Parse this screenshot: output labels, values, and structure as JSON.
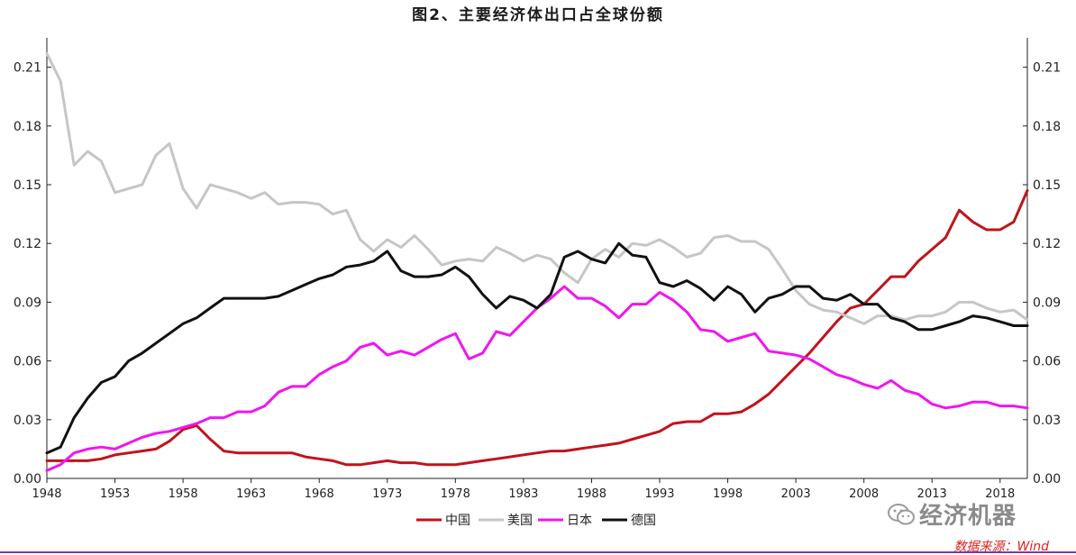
{
  "title": "图2、主要经济体出口占全球份额",
  "source": "数据来源：Wind",
  "watermark": "经济机器",
  "chart_data": {
    "type": "line",
    "xlim": [
      1948,
      2020
    ],
    "ylim": [
      0,
      0.225
    ],
    "x_ticks": [
      1948,
      1953,
      1958,
      1963,
      1968,
      1973,
      1978,
      1983,
      1988,
      1993,
      1998,
      2003,
      2008,
      2013,
      2018
    ],
    "y_ticks": [
      0.0,
      0.03,
      0.06,
      0.09,
      0.12,
      0.15,
      0.18,
      0.21
    ],
    "y_tick_labels": [
      "0.00",
      "0.03",
      "0.06",
      "0.09",
      "0.12",
      "0.15",
      "0.18",
      "0.21"
    ],
    "legend_position": "bottom-center",
    "grid": false,
    "series": [
      {
        "name": "中国",
        "color": "#c0141c",
        "points": [
          [
            1948,
            0.009
          ],
          [
            1949,
            0.009
          ],
          [
            1950,
            0.009
          ],
          [
            1951,
            0.009
          ],
          [
            1952,
            0.01
          ],
          [
            1953,
            0.012
          ],
          [
            1954,
            0.013
          ],
          [
            1955,
            0.014
          ],
          [
            1956,
            0.015
          ],
          [
            1957,
            0.019
          ],
          [
            1958,
            0.025
          ],
          [
            1959,
            0.027
          ],
          [
            1960,
            0.02
          ],
          [
            1961,
            0.014
          ],
          [
            1962,
            0.013
          ],
          [
            1963,
            0.013
          ],
          [
            1964,
            0.013
          ],
          [
            1965,
            0.013
          ],
          [
            1966,
            0.013
          ],
          [
            1967,
            0.011
          ],
          [
            1968,
            0.01
          ],
          [
            1969,
            0.009
          ],
          [
            1970,
            0.007
          ],
          [
            1971,
            0.007
          ],
          [
            1972,
            0.008
          ],
          [
            1973,
            0.009
          ],
          [
            1974,
            0.008
          ],
          [
            1975,
            0.008
          ],
          [
            1976,
            0.007
          ],
          [
            1977,
            0.007
          ],
          [
            1978,
            0.007
          ],
          [
            1979,
            0.008
          ],
          [
            1980,
            0.009
          ],
          [
            1981,
            0.01
          ],
          [
            1982,
            0.011
          ],
          [
            1983,
            0.012
          ],
          [
            1984,
            0.013
          ],
          [
            1985,
            0.014
          ],
          [
            1986,
            0.014
          ],
          [
            1987,
            0.015
          ],
          [
            1988,
            0.016
          ],
          [
            1989,
            0.017
          ],
          [
            1990,
            0.018
          ],
          [
            1991,
            0.02
          ],
          [
            1992,
            0.022
          ],
          [
            1993,
            0.024
          ],
          [
            1994,
            0.028
          ],
          [
            1995,
            0.029
          ],
          [
            1996,
            0.029
          ],
          [
            1997,
            0.033
          ],
          [
            1998,
            0.033
          ],
          [
            1999,
            0.034
          ],
          [
            2000,
            0.038
          ],
          [
            2001,
            0.043
          ],
          [
            2002,
            0.05
          ],
          [
            2003,
            0.057
          ],
          [
            2004,
            0.064
          ],
          [
            2005,
            0.072
          ],
          [
            2006,
            0.08
          ],
          [
            2007,
            0.087
          ],
          [
            2008,
            0.089
          ],
          [
            2009,
            0.096
          ],
          [
            2010,
            0.103
          ],
          [
            2011,
            0.103
          ],
          [
            2012,
            0.111
          ],
          [
            2013,
            0.117
          ],
          [
            2014,
            0.123
          ],
          [
            2015,
            0.137
          ],
          [
            2016,
            0.131
          ],
          [
            2017,
            0.127
          ],
          [
            2018,
            0.127
          ],
          [
            2019,
            0.131
          ],
          [
            2020,
            0.147
          ]
        ]
      },
      {
        "name": "美国",
        "color": "#c6c6c6",
        "points": [
          [
            1948,
            0.217
          ],
          [
            1949,
            0.203
          ],
          [
            1950,
            0.16
          ],
          [
            1951,
            0.167
          ],
          [
            1952,
            0.162
          ],
          [
            1953,
            0.146
          ],
          [
            1954,
            0.148
          ],
          [
            1955,
            0.15
          ],
          [
            1956,
            0.165
          ],
          [
            1957,
            0.171
          ],
          [
            1958,
            0.148
          ],
          [
            1959,
            0.138
          ],
          [
            1960,
            0.15
          ],
          [
            1961,
            0.148
          ],
          [
            1962,
            0.146
          ],
          [
            1963,
            0.143
          ],
          [
            1964,
            0.146
          ],
          [
            1965,
            0.14
          ],
          [
            1966,
            0.141
          ],
          [
            1967,
            0.141
          ],
          [
            1968,
            0.14
          ],
          [
            1969,
            0.135
          ],
          [
            1970,
            0.137
          ],
          [
            1971,
            0.122
          ],
          [
            1972,
            0.116
          ],
          [
            1973,
            0.122
          ],
          [
            1974,
            0.118
          ],
          [
            1975,
            0.124
          ],
          [
            1976,
            0.117
          ],
          [
            1977,
            0.109
          ],
          [
            1978,
            0.111
          ],
          [
            1979,
            0.112
          ],
          [
            1980,
            0.111
          ],
          [
            1981,
            0.118
          ],
          [
            1982,
            0.115
          ],
          [
            1983,
            0.111
          ],
          [
            1984,
            0.114
          ],
          [
            1985,
            0.112
          ],
          [
            1986,
            0.105
          ],
          [
            1987,
            0.1
          ],
          [
            1988,
            0.112
          ],
          [
            1989,
            0.117
          ],
          [
            1990,
            0.113
          ],
          [
            1991,
            0.12
          ],
          [
            1992,
            0.119
          ],
          [
            1993,
            0.122
          ],
          [
            1994,
            0.118
          ],
          [
            1995,
            0.113
          ],
          [
            1996,
            0.115
          ],
          [
            1997,
            0.123
          ],
          [
            1998,
            0.124
          ],
          [
            1999,
            0.121
          ],
          [
            2000,
            0.121
          ],
          [
            2001,
            0.117
          ],
          [
            2002,
            0.107
          ],
          [
            2003,
            0.096
          ],
          [
            2004,
            0.089
          ],
          [
            2005,
            0.086
          ],
          [
            2006,
            0.085
          ],
          [
            2007,
            0.082
          ],
          [
            2008,
            0.079
          ],
          [
            2009,
            0.083
          ],
          [
            2010,
            0.083
          ],
          [
            2011,
            0.081
          ],
          [
            2012,
            0.083
          ],
          [
            2013,
            0.083
          ],
          [
            2014,
            0.085
          ],
          [
            2015,
            0.09
          ],
          [
            2016,
            0.09
          ],
          [
            2017,
            0.087
          ],
          [
            2018,
            0.085
          ],
          [
            2019,
            0.086
          ],
          [
            2020,
            0.081
          ]
        ]
      },
      {
        "name": "日本",
        "color": "#f015f0",
        "points": [
          [
            1948,
            0.004
          ],
          [
            1949,
            0.007
          ],
          [
            1950,
            0.013
          ],
          [
            1951,
            0.015
          ],
          [
            1952,
            0.016
          ],
          [
            1953,
            0.015
          ],
          [
            1954,
            0.018
          ],
          [
            1955,
            0.021
          ],
          [
            1956,
            0.023
          ],
          [
            1957,
            0.024
          ],
          [
            1958,
            0.026
          ],
          [
            1959,
            0.028
          ],
          [
            1960,
            0.031
          ],
          [
            1961,
            0.031
          ],
          [
            1962,
            0.034
          ],
          [
            1963,
            0.034
          ],
          [
            1964,
            0.037
          ],
          [
            1965,
            0.044
          ],
          [
            1966,
            0.047
          ],
          [
            1967,
            0.047
          ],
          [
            1968,
            0.053
          ],
          [
            1969,
            0.057
          ],
          [
            1970,
            0.06
          ],
          [
            1971,
            0.067
          ],
          [
            1972,
            0.069
          ],
          [
            1973,
            0.063
          ],
          [
            1974,
            0.065
          ],
          [
            1975,
            0.063
          ],
          [
            1976,
            0.067
          ],
          [
            1977,
            0.071
          ],
          [
            1978,
            0.074
          ],
          [
            1979,
            0.061
          ],
          [
            1980,
            0.064
          ],
          [
            1981,
            0.075
          ],
          [
            1982,
            0.073
          ],
          [
            1983,
            0.08
          ],
          [
            1984,
            0.087
          ],
          [
            1985,
            0.092
          ],
          [
            1986,
            0.098
          ],
          [
            1987,
            0.092
          ],
          [
            1988,
            0.092
          ],
          [
            1989,
            0.088
          ],
          [
            1990,
            0.082
          ],
          [
            1991,
            0.089
          ],
          [
            1992,
            0.089
          ],
          [
            1993,
            0.095
          ],
          [
            1994,
            0.091
          ],
          [
            1995,
            0.085
          ],
          [
            1996,
            0.076
          ],
          [
            1997,
            0.075
          ],
          [
            1998,
            0.07
          ],
          [
            1999,
            0.072
          ],
          [
            2000,
            0.074
          ],
          [
            2001,
            0.065
          ],
          [
            2002,
            0.064
          ],
          [
            2003,
            0.063
          ],
          [
            2004,
            0.061
          ],
          [
            2005,
            0.057
          ],
          [
            2006,
            0.053
          ],
          [
            2007,
            0.051
          ],
          [
            2008,
            0.048
          ],
          [
            2009,
            0.046
          ],
          [
            2010,
            0.05
          ],
          [
            2011,
            0.045
          ],
          [
            2012,
            0.043
          ],
          [
            2013,
            0.038
          ],
          [
            2014,
            0.036
          ],
          [
            2015,
            0.037
          ],
          [
            2016,
            0.039
          ],
          [
            2017,
            0.039
          ],
          [
            2018,
            0.037
          ],
          [
            2019,
            0.037
          ],
          [
            2020,
            0.036
          ]
        ]
      },
      {
        "name": "德国",
        "color": "#111111",
        "points": [
          [
            1948,
            0.013
          ],
          [
            1949,
            0.016
          ],
          [
            1950,
            0.031
          ],
          [
            1951,
            0.041
          ],
          [
            1952,
            0.049
          ],
          [
            1953,
            0.052
          ],
          [
            1954,
            0.06
          ],
          [
            1955,
            0.064
          ],
          [
            1956,
            0.069
          ],
          [
            1957,
            0.074
          ],
          [
            1958,
            0.079
          ],
          [
            1959,
            0.082
          ],
          [
            1960,
            0.087
          ],
          [
            1961,
            0.092
          ],
          [
            1962,
            0.092
          ],
          [
            1963,
            0.092
          ],
          [
            1964,
            0.092
          ],
          [
            1965,
            0.093
          ],
          [
            1966,
            0.096
          ],
          [
            1967,
            0.099
          ],
          [
            1968,
            0.102
          ],
          [
            1969,
            0.104
          ],
          [
            1970,
            0.108
          ],
          [
            1971,
            0.109
          ],
          [
            1972,
            0.111
          ],
          [
            1973,
            0.116
          ],
          [
            1974,
            0.106
          ],
          [
            1975,
            0.103
          ],
          [
            1976,
            0.103
          ],
          [
            1977,
            0.104
          ],
          [
            1978,
            0.108
          ],
          [
            1979,
            0.103
          ],
          [
            1980,
            0.094
          ],
          [
            1981,
            0.087
          ],
          [
            1982,
            0.093
          ],
          [
            1983,
            0.091
          ],
          [
            1984,
            0.087
          ],
          [
            1985,
            0.094
          ],
          [
            1986,
            0.113
          ],
          [
            1987,
            0.116
          ],
          [
            1988,
            0.112
          ],
          [
            1989,
            0.11
          ],
          [
            1990,
            0.12
          ],
          [
            1991,
            0.114
          ],
          [
            1992,
            0.113
          ],
          [
            1993,
            0.1
          ],
          [
            1994,
            0.098
          ],
          [
            1995,
            0.101
          ],
          [
            1996,
            0.097
          ],
          [
            1997,
            0.091
          ],
          [
            1998,
            0.098
          ],
          [
            1999,
            0.094
          ],
          [
            2000,
            0.085
          ],
          [
            2001,
            0.092
          ],
          [
            2002,
            0.094
          ],
          [
            2003,
            0.098
          ],
          [
            2004,
            0.098
          ],
          [
            2005,
            0.092
          ],
          [
            2006,
            0.091
          ],
          [
            2007,
            0.094
          ],
          [
            2008,
            0.089
          ],
          [
            2009,
            0.089
          ],
          [
            2010,
            0.082
          ],
          [
            2011,
            0.08
          ],
          [
            2012,
            0.076
          ],
          [
            2013,
            0.076
          ],
          [
            2014,
            0.078
          ],
          [
            2015,
            0.08
          ],
          [
            2016,
            0.083
          ],
          [
            2017,
            0.082
          ],
          [
            2018,
            0.08
          ],
          [
            2019,
            0.078
          ],
          [
            2020,
            0.078
          ]
        ]
      }
    ]
  }
}
